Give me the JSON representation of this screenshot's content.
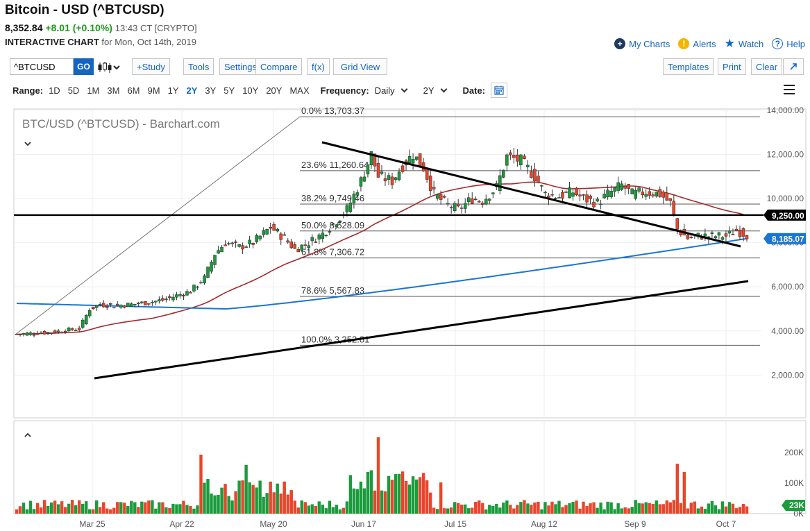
{
  "header": {
    "title": "Bitcoin - USD (^BTCUSD)",
    "price": "8,352.84",
    "change": "+8.01 (+0.10%)",
    "time": "13:43 CT [CRYPTO]",
    "chart_label": "INTERACTIVE CHART",
    "chart_date": "for Mon, Oct 14th, 2019"
  },
  "top_links": {
    "my_charts": "My Charts",
    "alerts": "Alerts",
    "watch": "Watch",
    "help": "Help"
  },
  "toolbar": {
    "symbol_value": "^BTCUSD",
    "go_label": "GO",
    "study_label": "+Study",
    "tools_label": "Tools",
    "settings_label": "Settings",
    "compare_label": "Compare",
    "fx_label": "f(x)",
    "grid_view_label": "Grid View",
    "templates_label": "Templates",
    "print_label": "Print",
    "clear_label": "Clear",
    "expand_icon": "expand-arrow-icon"
  },
  "range_bar": {
    "range_label": "Range:",
    "ranges": [
      "1D",
      "5D",
      "1M",
      "3M",
      "6M",
      "9M",
      "1Y",
      "2Y",
      "3Y",
      "5Y",
      "10Y",
      "20Y",
      "MAX"
    ],
    "active_range": "2Y",
    "frequency_label": "Frequency:",
    "frequency_value": "Daily",
    "period_value": "2Y",
    "date_label": "Date:"
  },
  "chart_data": {
    "type": "candlestick",
    "title": "BTC/USD (^BTCUSD) - Barchart.com",
    "colors": {
      "up": "#1a9b3c",
      "down": "#e8462c",
      "ma_fast": "#a52a2a",
      "ma_slow": "#1976d2",
      "trendline": "#000000",
      "fib": "#555555"
    },
    "y_ticks": [
      "14,000.00",
      "12,000.00",
      "10,000.00",
      "8,000.00",
      "6,000.00",
      "4,000.00",
      "2,000.00"
    ],
    "x_labels": [
      "Mar 25",
      "Apr 22",
      "May 20",
      "Jun 17",
      "Jul 15",
      "Aug 12",
      "Sep 9",
      "Oct 7"
    ],
    "fib_levels": [
      {
        "label": "0.0% 13,703.37",
        "value": 13703.37
      },
      {
        "label": "23.6% 11,260.64",
        "value": 11260.64
      },
      {
        "label": "38.2% 9,749.46",
        "value": 9749.46
      },
      {
        "label": "50.0% 8,528.09",
        "value": 8528.09
      },
      {
        "label": "61.8% 7,306.72",
        "value": 7306.72
      },
      {
        "label": "78.6% 5,567.83",
        "value": 5567.83
      },
      {
        "label": "100.0% 3,352.81",
        "value": 3352.81
      }
    ],
    "horizontal_line": {
      "label": "9,250.00",
      "value": 9250
    },
    "last_price_label": "8,185.07",
    "last_price_value": 8185.07,
    "volume_ticks": [
      "200K",
      "100K",
      "0K"
    ],
    "last_volume_label": "23K",
    "close_anchors": [
      [
        0,
        3850
      ],
      [
        3,
        3880
      ],
      [
        8,
        3920
      ],
      [
        12,
        3980
      ],
      [
        15,
        4050
      ],
      [
        18,
        4100
      ],
      [
        21,
        5000
      ],
      [
        24,
        5200
      ],
      [
        28,
        5150
      ],
      [
        33,
        5200
      ],
      [
        38,
        5300
      ],
      [
        42,
        5400
      ],
      [
        46,
        5600
      ],
      [
        50,
        5800
      ],
      [
        54,
        6400
      ],
      [
        57,
        7500
      ],
      [
        60,
        8000
      ],
      [
        64,
        7800
      ],
      [
        68,
        8000
      ],
      [
        73,
        8700
      ],
      [
        77,
        8200
      ],
      [
        80,
        7700
      ],
      [
        84,
        8000
      ],
      [
        88,
        8400
      ],
      [
        92,
        9000
      ],
      [
        95,
        9500
      ],
      [
        99,
        10800
      ],
      [
        102,
        12000
      ],
      [
        104,
        11000
      ],
      [
        108,
        10800
      ],
      [
        111,
        11500
      ],
      [
        114,
        12000
      ],
      [
        117,
        11400
      ],
      [
        120,
        10200
      ],
      [
        124,
        9700
      ],
      [
        127,
        9500
      ],
      [
        131,
        10000
      ],
      [
        134,
        9900
      ],
      [
        138,
        10500
      ],
      [
        141,
        11900
      ],
      [
        145,
        11700
      ],
      [
        149,
        11000
      ],
      [
        152,
        10200
      ],
      [
        156,
        10100
      ],
      [
        160,
        10300
      ],
      [
        163,
        10000
      ],
      [
        167,
        9800
      ],
      [
        170,
        10200
      ],
      [
        174,
        10600
      ],
      [
        177,
        10200
      ],
      [
        181,
        10300
      ],
      [
        185,
        10200
      ],
      [
        188,
        9800
      ],
      [
        190,
        8600
      ],
      [
        193,
        8200
      ],
      [
        196,
        8300
      ],
      [
        200,
        8300
      ],
      [
        204,
        8300
      ],
      [
        207,
        8550
      ],
      [
        210,
        8350
      ]
    ]
  }
}
